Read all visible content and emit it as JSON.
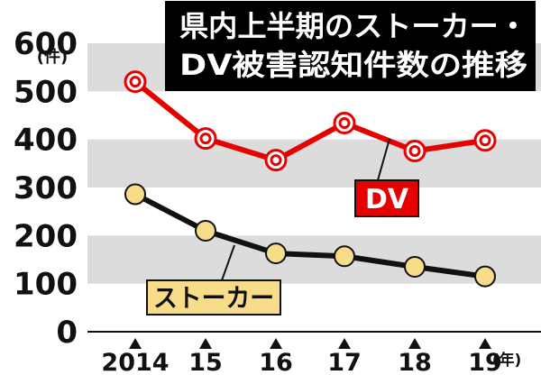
{
  "chart_data": {
    "type": "line",
    "title_lines": [
      "県内上半期のストーカー・",
      "DV被害認知件数の推移"
    ],
    "y_unit_label": "(件)",
    "x_unit_label": "(年)",
    "categories": [
      "2014",
      "15",
      "16",
      "17",
      "18",
      "19"
    ],
    "ylim": [
      0,
      600
    ],
    "y_ticks": [
      "0",
      "100",
      "200",
      "300",
      "400",
      "500",
      "600"
    ],
    "grid": "horizontal bands",
    "series": [
      {
        "name": "DV",
        "values": [
          520,
          402,
          357,
          434,
          376,
          398
        ],
        "line_color": "#e60000",
        "marker_fill": "#ffffff",
        "marker_ring": "#e60000",
        "label_bg": "#e60000",
        "label_color": "#ffffff"
      },
      {
        "name": "ストーカー",
        "values": [
          286,
          210,
          163,
          157,
          135,
          115
        ],
        "line_color": "#111111",
        "marker_fill": "#f7dc8a",
        "marker_ring": "#111111",
        "label_bg": "#f7dc8a",
        "label_color": "#111111"
      }
    ],
    "band_color": "#dcdcdc",
    "title_bg": "#000000",
    "title_color": "#ffffff"
  }
}
